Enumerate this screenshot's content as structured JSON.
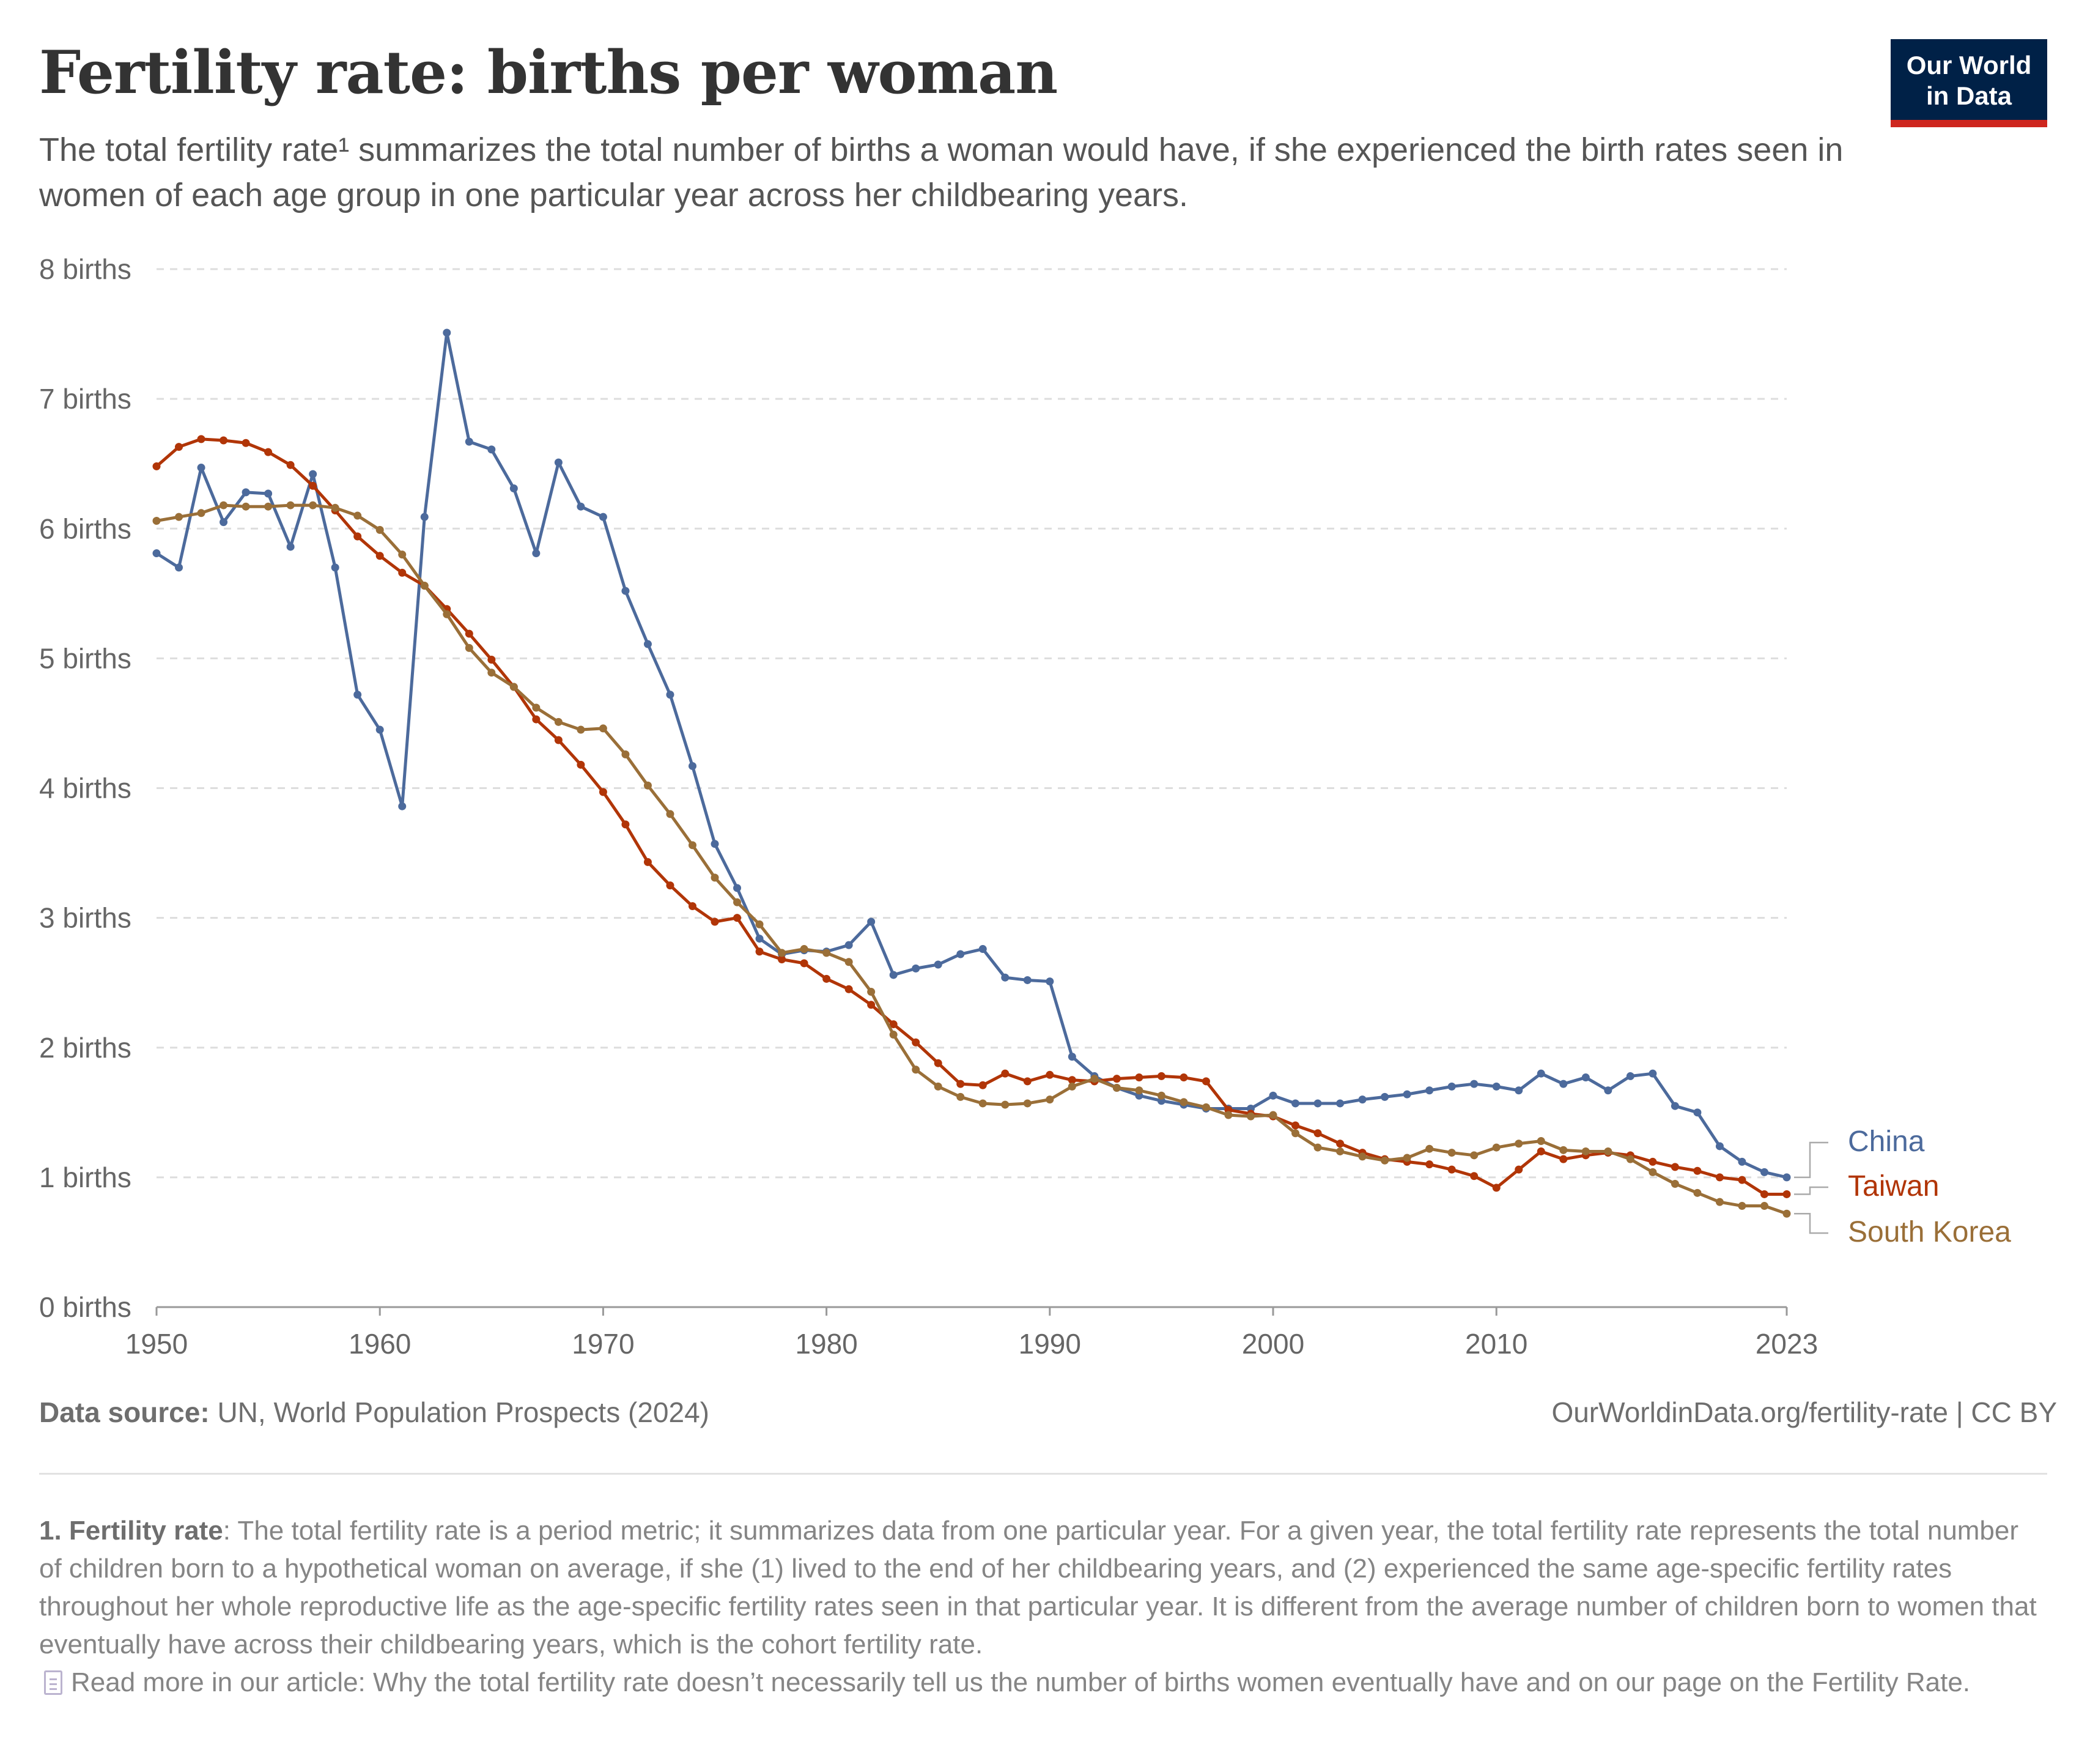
{
  "header": {
    "title": "Fertility rate: births per woman",
    "subtitle": "The total fertility rate¹ summarizes the total number of births a woman would have, if she experienced the birth rates seen in women of each age group in one particular year across her childbearing years."
  },
  "logo": {
    "text": "Our World\nin Data",
    "bg_color": "#002147",
    "accent_color": "#ce261e"
  },
  "footer": {
    "source_label": "Data source:",
    "source_text": "UN, World Population Prospects (2024)",
    "license": "OurWorldinData.org/fertility-rate | CC BY",
    "note_label": "1. Fertility rate",
    "note_text": ": The total fertility rate is a period metric; it summarizes data from one particular year. For a given year, the total fertility rate represents the total number of children born to a hypothetical woman on average, if she (1) lived to the end of her childbearing years, and (2) experienced the same age-specific fertility rates throughout her whole reproductive life as the age-specific fertility rates seen in that particular year. It is different from the average number of children born to women that eventually have across their childbearing years, which is the cohort fertility rate.",
    "read_more": "Read more in our article: Why the total fertility rate doesn’t necessarily tell us the number of births women eventually have and on our page on the Fertility Rate.",
    "read_more_icon": "document-icon"
  },
  "chart_data": {
    "type": "line",
    "x_start": 1950,
    "xlim": [
      1950,
      2023
    ],
    "ylim": [
      0,
      8
    ],
    "x_ticks": [
      1950,
      1960,
      1970,
      1980,
      1990,
      2000,
      2010,
      2023
    ],
    "y_ticks": [
      {
        "value": 0,
        "label": "0 births"
      },
      {
        "value": 1,
        "label": "1 births"
      },
      {
        "value": 2,
        "label": "2 births"
      },
      {
        "value": 3,
        "label": "3 births"
      },
      {
        "value": 4,
        "label": "4 births"
      },
      {
        "value": 5,
        "label": "5 births"
      },
      {
        "value": 6,
        "label": "6 births"
      },
      {
        "value": 7,
        "label": "7 births"
      },
      {
        "value": 8,
        "label": "8 births"
      }
    ],
    "grid": "horizontal dashed",
    "legend": "right, labels at line ends",
    "series": [
      {
        "name": "China",
        "color": "#4c6a9c",
        "values": [
          5.81,
          5.7,
          6.47,
          6.05,
          6.28,
          6.27,
          5.86,
          6.42,
          5.7,
          4.72,
          4.45,
          3.86,
          6.09,
          7.51,
          6.67,
          6.61,
          6.31,
          5.81,
          6.51,
          6.17,
          6.09,
          5.52,
          5.11,
          4.72,
          4.17,
          3.57,
          3.23,
          2.84,
          2.72,
          2.75,
          2.74,
          2.79,
          2.97,
          2.56,
          2.61,
          2.64,
          2.72,
          2.76,
          2.54,
          2.52,
          2.51,
          1.93,
          1.78,
          1.69,
          1.63,
          1.59,
          1.56,
          1.53,
          1.53,
          1.53,
          1.63,
          1.57,
          1.57,
          1.57,
          1.6,
          1.62,
          1.64,
          1.67,
          1.7,
          1.72,
          1.7,
          1.67,
          1.8,
          1.72,
          1.77,
          1.67,
          1.78,
          1.8,
          1.55,
          1.5,
          1.24,
          1.12,
          1.04,
          1.0
        ]
      },
      {
        "name": "Taiwan",
        "color": "#b13507",
        "values": [
          6.48,
          6.63,
          6.69,
          6.68,
          6.66,
          6.59,
          6.49,
          6.33,
          6.14,
          5.94,
          5.79,
          5.66,
          5.56,
          5.38,
          5.19,
          4.99,
          4.78,
          4.53,
          4.37,
          4.18,
          3.97,
          3.72,
          3.43,
          3.25,
          3.09,
          2.97,
          3.0,
          2.74,
          2.68,
          2.65,
          2.53,
          2.45,
          2.33,
          2.18,
          2.04,
          1.88,
          1.72,
          1.71,
          1.8,
          1.74,
          1.79,
          1.75,
          1.74,
          1.76,
          1.77,
          1.78,
          1.77,
          1.74,
          1.52,
          1.49,
          1.47,
          1.4,
          1.34,
          1.26,
          1.19,
          1.14,
          1.12,
          1.1,
          1.06,
          1.01,
          0.92,
          1.06,
          1.2,
          1.14,
          1.17,
          1.19,
          1.17,
          1.12,
          1.08,
          1.05,
          1.0,
          0.98,
          0.87,
          0.87
        ]
      },
      {
        "name": "South Korea",
        "color": "#9a6f38",
        "values": [
          6.06,
          6.09,
          6.12,
          6.18,
          6.17,
          6.17,
          6.18,
          6.18,
          6.16,
          6.1,
          5.99,
          5.8,
          5.56,
          5.34,
          5.08,
          4.89,
          4.78,
          4.62,
          4.51,
          4.45,
          4.46,
          4.26,
          4.02,
          3.8,
          3.56,
          3.31,
          3.12,
          2.95,
          2.73,
          2.76,
          2.73,
          2.66,
          2.43,
          2.1,
          1.83,
          1.7,
          1.62,
          1.57,
          1.56,
          1.57,
          1.6,
          1.7,
          1.76,
          1.69,
          1.67,
          1.63,
          1.58,
          1.54,
          1.48,
          1.47,
          1.48,
          1.34,
          1.23,
          1.2,
          1.16,
          1.13,
          1.15,
          1.22,
          1.19,
          1.17,
          1.23,
          1.26,
          1.28,
          1.21,
          1.2,
          1.2,
          1.14,
          1.04,
          0.95,
          0.88,
          0.81,
          0.78,
          0.78,
          0.72
        ]
      }
    ]
  }
}
